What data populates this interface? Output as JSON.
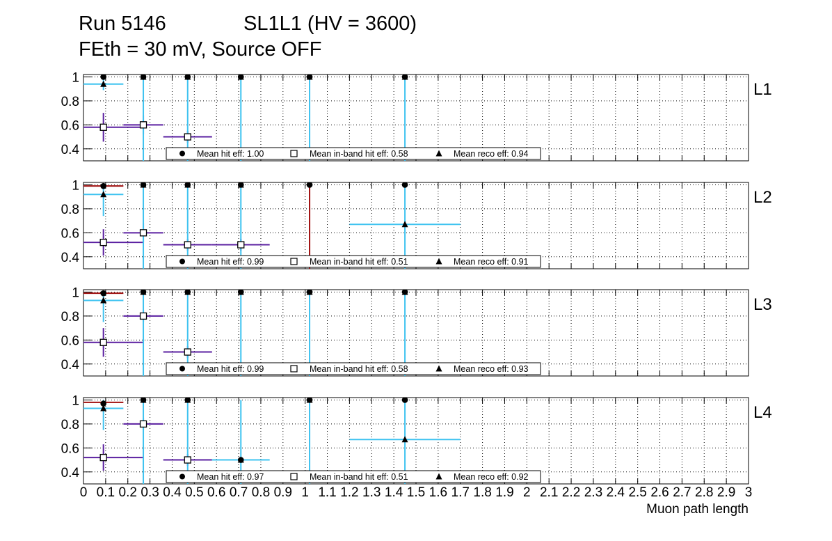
{
  "title_line1_run": "Run 5146",
  "title_line1_sl": "SL1L1 (HV = 3600)",
  "title_line2": "FEth = 30 mV, Source OFF",
  "colors": {
    "hit": "#000000",
    "inband": "#5a1fa0",
    "reco": "#3fc3f0",
    "outband": "#a01010"
  },
  "chart_data": {
    "type": "scatter",
    "xlabel": "Muon path length",
    "xlim": [
      0,
      3
    ],
    "ylim": [
      0.3,
      1.02
    ],
    "x_ticks": [
      "0",
      "0.1",
      "0.2",
      "0.3",
      "0.4",
      "0.5",
      "0.6",
      "0.7",
      "0.8",
      "0.9",
      "1",
      "1.1",
      "1.2",
      "1.3",
      "1.4",
      "1.5",
      "1.6",
      "1.7",
      "1.8",
      "1.9",
      "2",
      "2.1",
      "2.2",
      "2.3",
      "2.4",
      "2.5",
      "2.6",
      "2.7",
      "2.8",
      "2.9",
      "3"
    ],
    "y_ticks": [
      "0.4",
      "0.6",
      "0.8",
      "1"
    ],
    "grid": true,
    "legend_placement": "bottom-center",
    "legend_labels": {
      "hit": "Mean hit  eff: ",
      "inband": "Mean in-band hit eff: ",
      "reco": "Mean reco eff: "
    },
    "panels": [
      {
        "label": "L1",
        "mean_hit": "1.00",
        "mean_inband": "0.58",
        "mean_reco": "0.94",
        "hit_points": [
          [
            0.09,
            1
          ],
          [
            0.27,
            1
          ],
          [
            0.47,
            1
          ],
          [
            0.71,
            1
          ],
          [
            1.02,
            1
          ],
          [
            1.45,
            1
          ]
        ],
        "inband_points": [
          [
            0.09,
            0.58,
            0.18,
            0.12
          ],
          [
            0.27,
            0.6,
            0.09,
            0.08
          ],
          [
            0.47,
            0.5,
            0.11,
            0.05
          ]
        ],
        "reco_points": [
          [
            0.09,
            0.94,
            0.09,
            0.05
          ],
          [
            0.27,
            1,
            0.01,
            0.7
          ],
          [
            0.47,
            1,
            0.01,
            0.7
          ],
          [
            0.71,
            1,
            0.01,
            0.7
          ],
          [
            1.02,
            1,
            0.01,
            0.7
          ],
          [
            1.45,
            1,
            0.01,
            0.7
          ]
        ],
        "outband_points": []
      },
      {
        "label": "L2",
        "mean_hit": "0.99",
        "mean_inband": "0.51",
        "mean_reco": "0.91",
        "hit_points": [
          [
            0.09,
            0.99
          ],
          [
            0.27,
            1
          ],
          [
            0.47,
            1
          ],
          [
            0.71,
            1
          ],
          [
            1.02,
            1
          ],
          [
            1.45,
            1
          ]
        ],
        "inband_points": [
          [
            0.09,
            0.52,
            0.18,
            0.11
          ],
          [
            0.27,
            0.6,
            0.09,
            0.08
          ],
          [
            0.47,
            0.5,
            0.11,
            0.05
          ],
          [
            0.71,
            0.5,
            0.13,
            0.05
          ]
        ],
        "reco_points": [
          [
            0.09,
            0.92,
            0.09,
            0.18
          ],
          [
            0.27,
            1,
            0.01,
            0.7
          ],
          [
            0.47,
            1,
            0.01,
            0.7
          ],
          [
            0.71,
            1,
            0.01,
            0.7
          ],
          [
            1.45,
            0.67,
            0.25,
            0.37
          ]
        ],
        "outband_points": [
          [
            0.09,
            0.99,
            0.09,
            0.01
          ],
          [
            1.02,
            1,
            0.01,
            0.7
          ]
        ]
      },
      {
        "label": "L3",
        "mean_hit": "0.99",
        "mean_inband": "0.58",
        "mean_reco": "0.93",
        "hit_points": [
          [
            0.09,
            0.99
          ],
          [
            0.27,
            1
          ],
          [
            0.47,
            1
          ],
          [
            0.71,
            1
          ],
          [
            1.02,
            1
          ],
          [
            1.45,
            1
          ]
        ],
        "inband_points": [
          [
            0.09,
            0.58,
            0.18,
            0.12
          ],
          [
            0.27,
            0.8,
            0.09,
            0.05
          ],
          [
            0.47,
            0.5,
            0.11,
            0.05
          ]
        ],
        "reco_points": [
          [
            0.09,
            0.93,
            0.09,
            0.18
          ],
          [
            0.27,
            1,
            0.01,
            0.7
          ],
          [
            0.47,
            1,
            0.01,
            0.7
          ],
          [
            0.71,
            1,
            0.01,
            0.7
          ],
          [
            1.02,
            1,
            0.01,
            0.7
          ],
          [
            1.45,
            1,
            0.01,
            0.7
          ]
        ],
        "outband_points": [
          [
            0.09,
            0.99,
            0.09,
            0.01
          ]
        ]
      },
      {
        "label": "L4",
        "mean_hit": "0.97",
        "mean_inband": "0.51",
        "mean_reco": "0.92",
        "hit_points": [
          [
            0.09,
            0.97
          ],
          [
            0.27,
            1
          ],
          [
            0.47,
            1
          ],
          [
            0.71,
            0.5
          ],
          [
            1.02,
            1
          ],
          [
            1.45,
            1
          ]
        ],
        "inband_points": [
          [
            0.09,
            0.52,
            0.18,
            0.11
          ],
          [
            0.27,
            0.8,
            0.09,
            0.05
          ],
          [
            0.47,
            0.5,
            0.11,
            0.05
          ]
        ],
        "reco_points": [
          [
            0.09,
            0.93,
            0.09,
            0.18
          ],
          [
            0.27,
            1,
            0.01,
            0.7
          ],
          [
            0.47,
            1,
            0.01,
            0.7
          ],
          [
            0.71,
            0.5,
            0.13,
            0.5
          ],
          [
            1.02,
            1,
            0.01,
            0.7
          ],
          [
            1.45,
            0.67,
            0.25,
            0.37
          ]
        ],
        "outband_points": [
          [
            0.09,
            0.98,
            0.09,
            0.01
          ]
        ]
      }
    ]
  }
}
